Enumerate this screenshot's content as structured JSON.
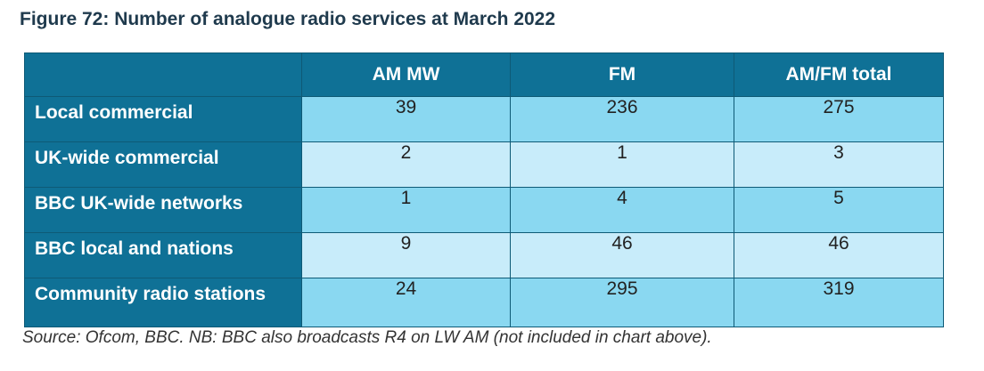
{
  "title": "Figure 72: Number of analogue radio services at March 2022",
  "table": {
    "columns": [
      "AM MW",
      "FM",
      "AM/FM total"
    ],
    "rows": [
      {
        "label": "Local commercial",
        "values": [
          "39",
          "236",
          "275"
        ]
      },
      {
        "label": "UK-wide commercial",
        "values": [
          "2",
          "1",
          "3"
        ]
      },
      {
        "label": "BBC UK-wide networks",
        "values": [
          "1",
          "4",
          "5"
        ]
      },
      {
        "label": "BBC local and nations",
        "values": [
          "9",
          "46",
          "46"
        ]
      },
      {
        "label": "Community radio stations",
        "values": [
          "24",
          "295",
          "319"
        ]
      }
    ]
  },
  "source": "Source: Ofcom, BBC. NB: BBC also broadcasts R4 on LW AM (not included in chart above).",
  "colors": {
    "header_bg": "#0f7196",
    "row_dark": "#8ad8f1",
    "row_light": "#c8ecfa",
    "title_text": "#1f3a4d"
  }
}
